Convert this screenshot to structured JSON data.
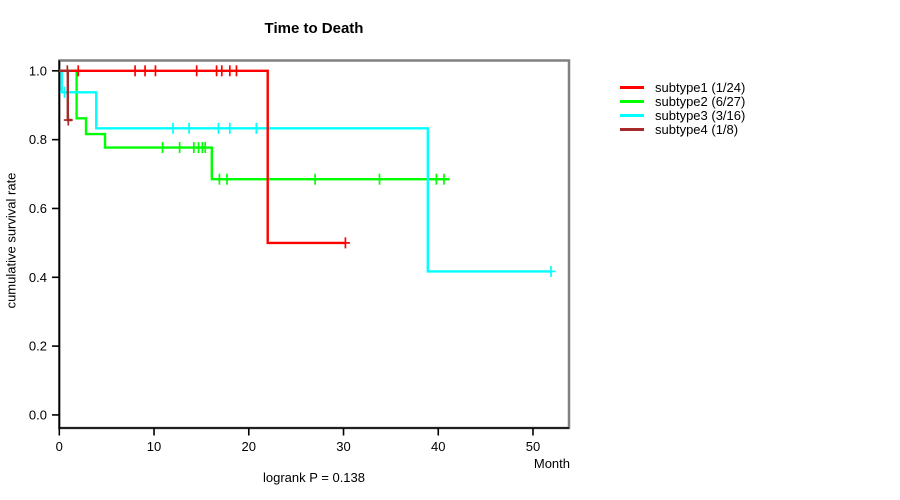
{
  "title": "Time to Death",
  "footer_note": "logrank P = 0.138",
  "axes": {
    "x": {
      "label": "Month",
      "min": 0,
      "max": 53.8,
      "tick_values": [
        0,
        10,
        20,
        30,
        40,
        50
      ],
      "tick_labels": [
        "0",
        "10",
        "20",
        "30",
        "40",
        "50"
      ]
    },
    "y": {
      "label": "cumulative survival rate",
      "min": -0.038,
      "max": 1.03,
      "tick_values": [
        0.0,
        0.2,
        0.4,
        0.6,
        0.8,
        1.0
      ],
      "tick_labels": [
        "0.0",
        "0.2",
        "0.4",
        "0.6",
        "0.8",
        "1.0"
      ]
    }
  },
  "chart_data": {
    "type": "line",
    "subtype": "kaplan-meier-step",
    "title": "Time to Death",
    "xlabel": "Month",
    "ylabel": "cumulative survival rate",
    "xlim": [
      0,
      53.8
    ],
    "ylim": [
      0,
      1.0
    ],
    "grid": false,
    "legend_position": "right-outside",
    "annotation": "logrank P = 0.138",
    "draw_order": [
      1,
      2,
      0,
      3
    ],
    "series": [
      {
        "name": "subtype1 (1/24)",
        "color": "#ff0000",
        "step_points": [
          [
            0,
            1.0
          ],
          [
            22,
            1.0
          ],
          [
            22,
            0.5
          ],
          [
            30.2,
            0.5
          ]
        ],
        "censor_marks": [
          [
            2.0,
            1.0
          ],
          [
            8.0,
            1.0
          ],
          [
            9.05,
            1.0
          ],
          [
            10.15,
            1.0
          ],
          [
            14.5,
            1.0
          ],
          [
            16.6,
            1.0
          ],
          [
            17.15,
            1.0
          ],
          [
            18.0,
            1.0
          ],
          [
            18.7,
            1.0
          ],
          [
            30.2,
            0.5
          ]
        ]
      },
      {
        "name": "subtype2 (6/27)",
        "color": "#00ff00",
        "step_points": [
          [
            0,
            1.0
          ],
          [
            1.83,
            1.0
          ],
          [
            1.83,
            0.862
          ],
          [
            2.82,
            0.862
          ],
          [
            2.82,
            0.816
          ],
          [
            4.82,
            0.816
          ],
          [
            4.82,
            0.777
          ],
          [
            16.1,
            0.777
          ],
          [
            16.1,
            0.685
          ],
          [
            41.2,
            0.685
          ]
        ],
        "censor_marks": [
          [
            10.9,
            0.777
          ],
          [
            12.7,
            0.777
          ],
          [
            14.2,
            0.777
          ],
          [
            14.7,
            0.777
          ],
          [
            15.1,
            0.777
          ],
          [
            15.4,
            0.777
          ],
          [
            16.9,
            0.685
          ],
          [
            17.7,
            0.685
          ],
          [
            27.0,
            0.685
          ],
          [
            33.8,
            0.685
          ],
          [
            39.8,
            0.685
          ],
          [
            40.6,
            0.685
          ]
        ]
      },
      {
        "name": "subtype3 (3/16)",
        "color": "#00ffff",
        "step_points": [
          [
            0,
            1.0
          ],
          [
            0.25,
            1.0
          ],
          [
            0.25,
            0.9375
          ],
          [
            3.9,
            0.9375
          ],
          [
            3.9,
            0.833
          ],
          [
            38.9,
            0.833
          ],
          [
            38.9,
            0.417
          ],
          [
            51.9,
            0.417
          ]
        ],
        "censor_marks": [
          [
            0.55,
            0.9375
          ],
          [
            12.0,
            0.833
          ],
          [
            13.7,
            0.833
          ],
          [
            16.8,
            0.833
          ],
          [
            18.0,
            0.833
          ],
          [
            20.8,
            0.833
          ],
          [
            51.9,
            0.417
          ]
        ]
      },
      {
        "name": "subtype4 (1/8)",
        "color": "#a52a2a",
        "step_points": [
          [
            0,
            1.0
          ],
          [
            0.9,
            1.0
          ],
          [
            0.9,
            0.857
          ],
          [
            1.35,
            0.857
          ]
        ],
        "censor_marks": [
          [
            0.85,
            1.0
          ],
          [
            0.95,
            0.857
          ]
        ]
      }
    ]
  },
  "legend": {
    "items": [
      {
        "label": "subtype1 (1/24)",
        "color": "#ff0000"
      },
      {
        "label": "subtype2 (6/27)",
        "color": "#00ff00"
      },
      {
        "label": "subtype3 (3/16)",
        "color": "#00ffff"
      },
      {
        "label": "subtype4 (1/8)",
        "color": "#a52a2a"
      }
    ]
  },
  "style_colors": {
    "box_border": "#808080",
    "axis": "#000000"
  }
}
